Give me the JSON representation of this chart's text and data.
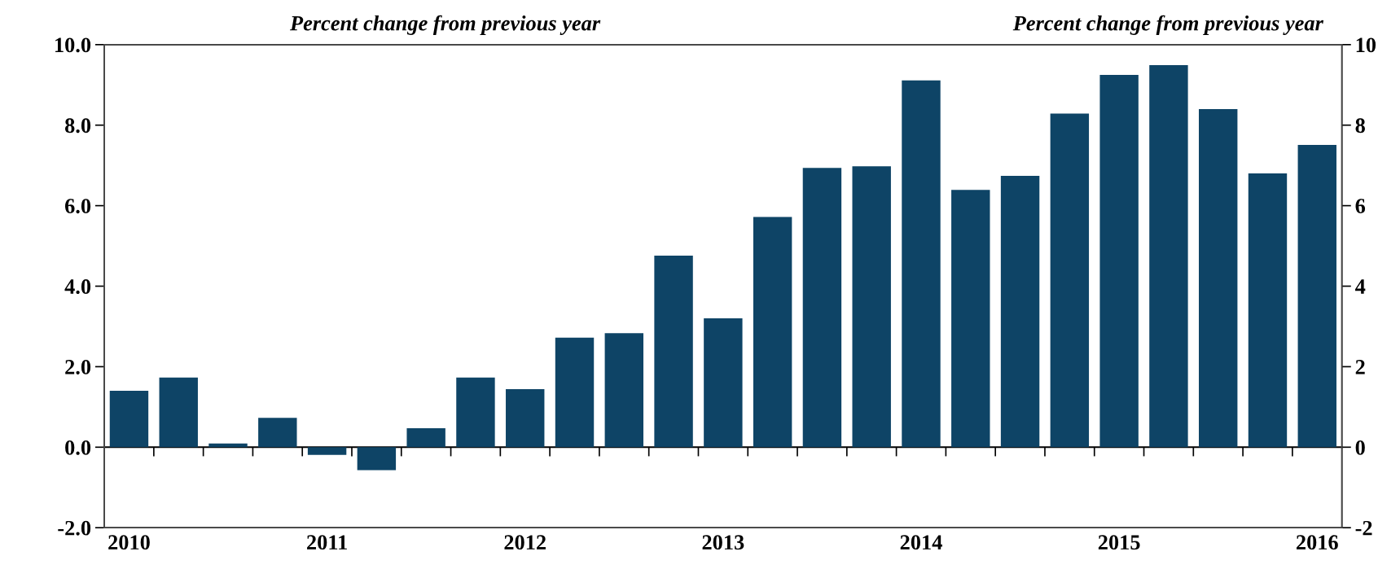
{
  "chart_data": {
    "type": "bar",
    "ylabel": "Percent change from previous year",
    "y2label": "Percent change from previous year",
    "categories": [
      "2010",
      null,
      null,
      null,
      "2011",
      null,
      null,
      null,
      "2012",
      null,
      null,
      null,
      "2013",
      null,
      null,
      null,
      "2014",
      null,
      null,
      null,
      "2015",
      null,
      null,
      null,
      "2016"
    ],
    "series": [
      {
        "color": "#0e4466",
        "values": [
          1.4,
          1.73,
          0.09,
          0.73,
          -0.19,
          -0.57,
          0.47,
          1.73,
          1.44,
          2.72,
          2.83,
          4.76,
          3.2,
          5.72,
          6.94,
          6.98,
          9.11,
          6.39,
          6.74,
          8.29,
          9.25,
          9.49,
          8.4,
          6.8,
          7.51
        ]
      }
    ],
    "ylim": [
      -2,
      10
    ],
    "yticks": [
      {
        "value": -2,
        "label": "-2.0"
      },
      {
        "value": 0,
        "label": "0.0"
      },
      {
        "value": 2,
        "label": "2.0"
      },
      {
        "value": 4,
        "label": "4.0"
      },
      {
        "value": 6,
        "label": "6.0"
      },
      {
        "value": 8,
        "label": "8.0"
      },
      {
        "value": 10,
        "label": "10.0"
      }
    ],
    "y2lim": [
      -2,
      10
    ],
    "y2ticks": [
      -2,
      0,
      2,
      4,
      6,
      8,
      10
    ]
  }
}
